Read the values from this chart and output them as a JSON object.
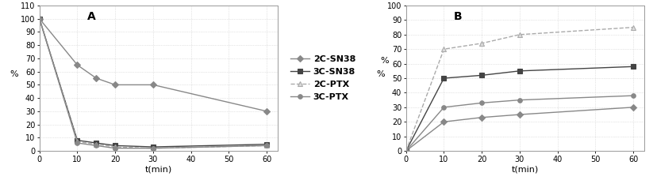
{
  "panel_A": {
    "title": "A",
    "xlabel": "t(min)",
    "ylabel": "%",
    "xlim": [
      0,
      63
    ],
    "ylim": [
      0,
      110
    ],
    "yticks": [
      0,
      10,
      20,
      30,
      40,
      50,
      60,
      70,
      80,
      90,
      100,
      110
    ],
    "xticks": [
      0,
      10,
      20,
      30,
      40,
      50,
      60
    ],
    "time": [
      0,
      10,
      15,
      20,
      30,
      60
    ],
    "series": {
      "2C-SN38": {
        "values": [
          100,
          65,
          55,
          50,
          50,
          30
        ],
        "color": "#888888",
        "marker": "D",
        "linestyle": "-",
        "markerfc": "#888888"
      },
      "3C-SN38": {
        "values": [
          100,
          8,
          6,
          4,
          3,
          5
        ],
        "color": "#444444",
        "marker": "s",
        "linestyle": "-",
        "markerfc": "#444444"
      },
      "2C-PTX": {
        "values": [
          100,
          7,
          5,
          3,
          2,
          4
        ],
        "color": "#aaaaaa",
        "marker": "^",
        "linestyle": "--",
        "markerfc": "#dddddd"
      },
      "3C-PTX": {
        "values": [
          100,
          6,
          4,
          2,
          2,
          4
        ],
        "color": "#888888",
        "marker": "o",
        "linestyle": "-",
        "markerfc": "#888888"
      }
    }
  },
  "panel_B": {
    "title": "B",
    "xlabel": "t(min)",
    "ylabel": "%",
    "xlim": [
      0,
      63
    ],
    "ylim": [
      0,
      100
    ],
    "yticks": [
      0,
      10,
      20,
      30,
      40,
      50,
      60,
      70,
      80,
      90,
      100
    ],
    "xticks": [
      0,
      10,
      20,
      30,
      40,
      50,
      60
    ],
    "time": [
      0,
      10,
      20,
      30,
      60
    ],
    "series": {
      "2C-SN38": {
        "values": [
          0,
          20,
          23,
          25,
          30
        ],
        "color": "#888888",
        "marker": "D",
        "linestyle": "-",
        "markerfc": "#888888"
      },
      "3C-SN38": {
        "values": [
          0,
          50,
          52,
          55,
          58
        ],
        "color": "#444444",
        "marker": "s",
        "linestyle": "-",
        "markerfc": "#444444"
      },
      "2C-PTX": {
        "values": [
          0,
          70,
          74,
          80,
          85
        ],
        "color": "#aaaaaa",
        "marker": "^",
        "linestyle": "--",
        "markerfc": "#dddddd"
      },
      "3C-PTX": {
        "values": [
          0,
          30,
          33,
          35,
          38
        ],
        "color": "#888888",
        "marker": "o",
        "linestyle": "-",
        "markerfc": "#888888"
      }
    }
  },
  "legend_order": [
    "2C-SN38",
    "3C-SN38",
    "2C-PTX",
    "3C-PTX"
  ],
  "background_color": "#ffffff",
  "grid_color": "#cccccc",
  "marker_size": 4,
  "linewidth": 1.0
}
